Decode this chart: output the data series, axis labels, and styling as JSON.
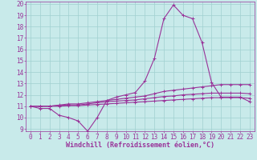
{
  "xlabel": "Windchill (Refroidissement éolien,°C)",
  "background_color": "#c8eaea",
  "grid_color": "#a0d0d0",
  "line_color": "#993399",
  "xlim": [
    -0.5,
    23.5
  ],
  "ylim": [
    8.8,
    20.2
  ],
  "xticks": [
    0,
    1,
    2,
    3,
    4,
    5,
    6,
    7,
    8,
    9,
    10,
    11,
    12,
    13,
    14,
    15,
    16,
    17,
    18,
    19,
    20,
    21,
    22,
    23
  ],
  "yticks": [
    9,
    10,
    11,
    12,
    13,
    14,
    15,
    16,
    17,
    18,
    19,
    20
  ],
  "line1_x": [
    0,
    1,
    2,
    3,
    4,
    5,
    6,
    7,
    8,
    9,
    10,
    11,
    12,
    13,
    14,
    15,
    16,
    17,
    18,
    19,
    20,
    21,
    22,
    23
  ],
  "line1_y": [
    11.0,
    10.8,
    10.8,
    10.2,
    10.0,
    9.7,
    8.8,
    10.0,
    11.5,
    11.8,
    12.0,
    12.2,
    13.2,
    15.2,
    18.7,
    19.9,
    19.0,
    18.7,
    16.6,
    13.1,
    11.8,
    11.8,
    11.8,
    11.4
  ],
  "line2_x": [
    0,
    1,
    2,
    3,
    4,
    5,
    6,
    7,
    8,
    9,
    10,
    11,
    12,
    13,
    14,
    15,
    16,
    17,
    18,
    19,
    20,
    21,
    22,
    23
  ],
  "line2_y": [
    11.0,
    11.0,
    11.0,
    11.1,
    11.2,
    11.2,
    11.3,
    11.4,
    11.5,
    11.6,
    11.7,
    11.8,
    11.9,
    12.1,
    12.3,
    12.4,
    12.5,
    12.6,
    12.7,
    12.8,
    12.9,
    12.9,
    12.9,
    12.9
  ],
  "line3_x": [
    0,
    1,
    2,
    3,
    4,
    5,
    6,
    7,
    8,
    9,
    10,
    11,
    12,
    13,
    14,
    15,
    16,
    17,
    18,
    19,
    20,
    21,
    22,
    23
  ],
  "line3_y": [
    11.0,
    11.0,
    11.0,
    11.05,
    11.1,
    11.1,
    11.2,
    11.3,
    11.4,
    11.45,
    11.5,
    11.55,
    11.65,
    11.75,
    11.85,
    11.9,
    12.0,
    12.05,
    12.1,
    12.15,
    12.15,
    12.15,
    12.15,
    12.1
  ],
  "line4_x": [
    0,
    1,
    2,
    3,
    4,
    5,
    6,
    7,
    8,
    9,
    10,
    11,
    12,
    13,
    14,
    15,
    16,
    17,
    18,
    19,
    20,
    21,
    22,
    23
  ],
  "line4_y": [
    11.0,
    11.0,
    11.0,
    11.0,
    11.05,
    11.05,
    11.1,
    11.15,
    11.2,
    11.25,
    11.3,
    11.35,
    11.4,
    11.45,
    11.5,
    11.55,
    11.6,
    11.65,
    11.7,
    11.75,
    11.75,
    11.75,
    11.75,
    11.7
  ],
  "marker": "+",
  "markersize": 3,
  "linewidth": 0.8,
  "font_size": 5.5,
  "label_font_size": 6
}
